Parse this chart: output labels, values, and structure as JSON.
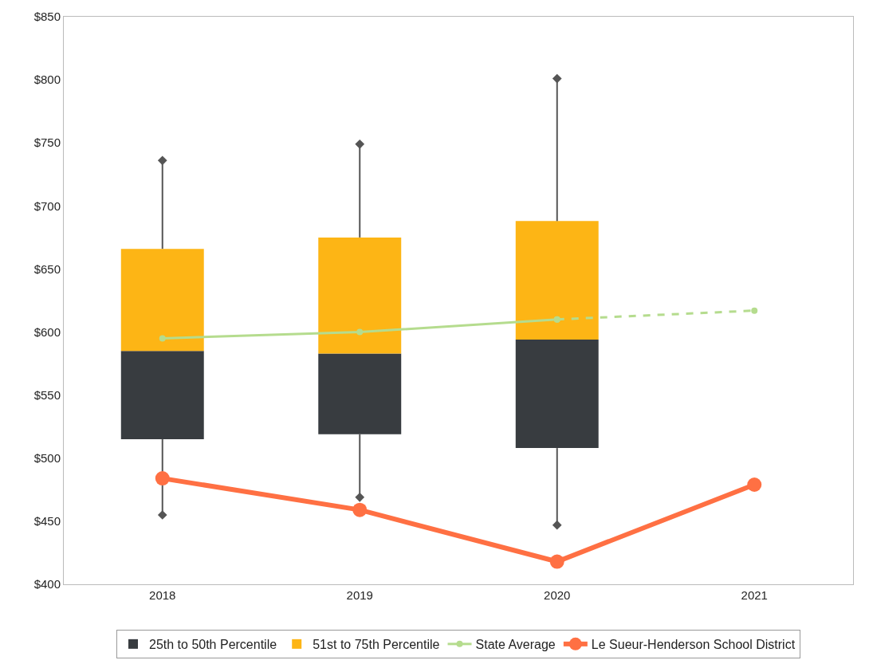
{
  "chart_data": {
    "type": "bar",
    "categories": [
      "2018",
      "2019",
      "2020",
      "2021"
    ],
    "series": [
      {
        "name": "25th to 50th Percentile",
        "color": "#383c40",
        "base": [
          515,
          519,
          508,
          null
        ],
        "values": [
          70,
          64,
          86,
          null
        ]
      },
      {
        "name": "51st to 75th Percentile",
        "color": "#fdb515",
        "base": [
          585,
          583,
          594,
          null
        ],
        "values": [
          81,
          92,
          94,
          null
        ]
      },
      {
        "type": "scatter",
        "color": "#555555",
        "marker": "diamond",
        "values": [
          736,
          749,
          801,
          null
        ],
        "errors": [
          [
            666,
            736
          ],
          [
            675,
            749
          ],
          [
            688,
            801
          ],
          null
        ]
      },
      {
        "type": "scatter",
        "color": "#555555",
        "marker": "diamond",
        "values": [
          455,
          469,
          447,
          null
        ],
        "errors": [
          [
            455,
            515
          ],
          [
            469,
            519
          ],
          [
            447,
            508
          ],
          null
        ]
      },
      {
        "name": "State Average",
        "type": "line",
        "color": "#b5dc8e",
        "marker": "circle",
        "line_style": "solid",
        "values": [
          595,
          600,
          610,
          null
        ]
      },
      {
        "type": "line",
        "color": "#b5dc8e",
        "marker": "circle",
        "line_style": "dashed",
        "values": [
          null,
          null,
          610,
          617
        ]
      },
      {
        "name": "Le Sueur-Henderson School District",
        "type": "line",
        "color": "#ff7043",
        "marker": "circle",
        "line_style": "solid",
        "values": [
          484,
          459,
          418,
          479
        ]
      }
    ],
    "ylim": [
      400,
      850
    ],
    "yticks": [
      {
        "value": 400,
        "label": "$400"
      },
      {
        "value": 450,
        "label": "$450"
      },
      {
        "value": 500,
        "label": "$500"
      },
      {
        "value": 550,
        "label": "$550"
      },
      {
        "value": 600,
        "label": "$600"
      },
      {
        "value": 650,
        "label": "$650"
      },
      {
        "value": 700,
        "label": "$700"
      },
      {
        "value": 750,
        "label": "$750"
      },
      {
        "value": 800,
        "label": "$800"
      },
      {
        "value": 850,
        "label": "$850"
      }
    ],
    "legend": "bottom"
  }
}
